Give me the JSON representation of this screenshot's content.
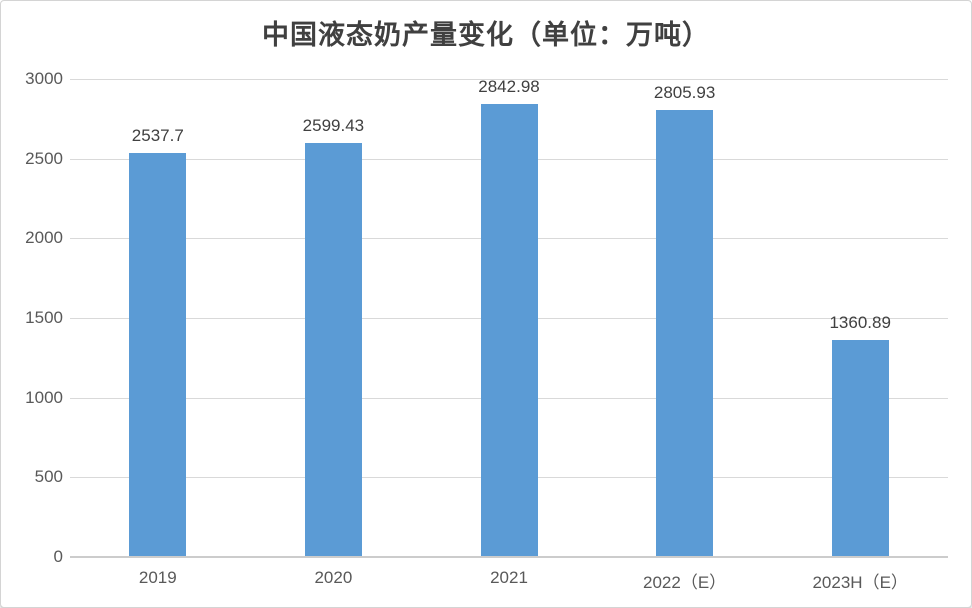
{
  "chart_data": {
    "type": "bar",
    "title": "中国液态奶产量变化（单位：万吨）",
    "categories": [
      "2019",
      "2020",
      "2021",
      "2022（E）",
      "2023H（E）"
    ],
    "values": [
      2537.7,
      2599.43,
      2842.98,
      2805.93,
      1360.89
    ],
    "value_labels": [
      "2537.7",
      "2599.43",
      "2842.98",
      "2805.93",
      "1360.89"
    ],
    "xlabel": "",
    "ylabel": "",
    "ylim": [
      0,
      3000
    ],
    "yticks": [
      0,
      500,
      1000,
      1500,
      2000,
      2500,
      3000
    ],
    "grid": "horizontal",
    "legend_position": "none",
    "bar_color": "#5B9BD5",
    "grid_color": "#D9D9D9",
    "axis_line_color": "#CCCCCC",
    "title_color": "#404040",
    "value_label_color": "#404040",
    "tick_label_color": "#595959",
    "background_color": "#FFFFFF",
    "card_border_color": "#D4D4D4"
  }
}
